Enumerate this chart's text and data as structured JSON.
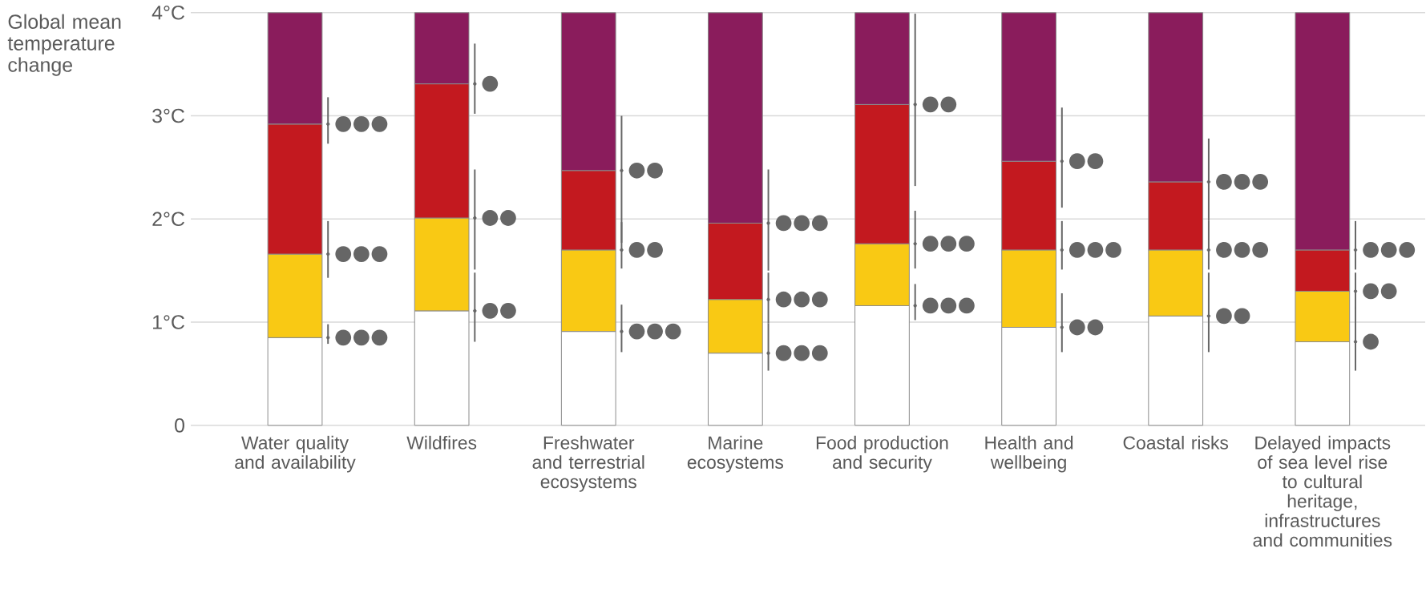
{
  "chart_data": {
    "type": "bar",
    "stacked": true,
    "ylabel": "Global mean temperature change",
    "categories": [
      "Water quality and availability",
      "Wildfires",
      "Freshwater and terrestrial ecosystems",
      "Marine ecosystems",
      "Food production and security",
      "Health and wellbeing",
      "Coastal risks",
      "Delayed impacts of sea level rise to cultural heritage, infrastructures and communities"
    ],
    "series": [
      {
        "color": "#ffffff",
        "values": [
          0.85,
          1.11,
          0.91,
          0.7,
          1.16,
          0.95,
          1.06,
          0.81
        ]
      },
      {
        "color": "#f9c914",
        "values": [
          0.81,
          0.9,
          0.79,
          0.52,
          0.6,
          0.75,
          0.64,
          0.49
        ]
      },
      {
        "color": "#c3191f",
        "values": [
          1.26,
          1.3,
          0.77,
          0.74,
          1.35,
          0.86,
          0.66,
          0.4
        ]
      },
      {
        "color": "#8a1c5c",
        "values": [
          1.08,
          0.69,
          1.53,
          2.04,
          0.89,
          1.44,
          1.64,
          2.3
        ]
      },
      {
        "type": "scatter",
        "color": "#666666",
        "values": [
          0.85,
          1.11,
          0.91,
          0.7,
          1.16,
          0.95,
          1.06,
          0.81
        ],
        "errors": [
          [
            0.79,
            0.98
          ],
          [
            0.81,
            1.48
          ],
          [
            0.71,
            1.17
          ],
          [
            0.53,
            0.99
          ],
          [
            1.02,
            1.37
          ],
          [
            0.71,
            1.28
          ],
          [
            0.71,
            1.48
          ],
          [
            0.53,
            1.15
          ]
        ],
        "value_labels": [
          "●●●",
          "●●",
          "●●●",
          "●●●",
          "●●●",
          "●●",
          "●●",
          "●"
        ]
      },
      {
        "type": "scatter",
        "color": "#666666",
        "values": [
          1.66,
          2.01,
          1.7,
          1.22,
          1.76,
          1.7,
          1.7,
          1.3
        ],
        "errors": [
          [
            1.43,
            1.98
          ],
          [
            1.51,
            2.48
          ],
          [
            1.52,
            1.97
          ],
          [
            0.99,
            1.48
          ],
          [
            1.52,
            2.08
          ],
          [
            1.51,
            1.98
          ],
          [
            1.51,
            1.98
          ],
          [
            1.13,
            1.48
          ]
        ],
        "value_labels": [
          "●●●",
          "●●",
          "●●",
          "●●●",
          "●●●",
          "●●●",
          "●●●",
          "●●"
        ]
      },
      {
        "type": "scatter",
        "color": "#666666",
        "values": [
          2.92,
          3.31,
          2.47,
          1.96,
          3.11,
          2.56,
          2.36,
          1.7
        ],
        "errors": [
          [
            2.73,
            3.18
          ],
          [
            3.02,
            3.7
          ],
          [
            1.77,
            3.0
          ],
          [
            1.5,
            2.48
          ],
          [
            2.32,
            3.99
          ],
          [
            2.11,
            3.08
          ],
          [
            1.98,
            2.78
          ],
          [
            1.51,
            1.98
          ]
        ],
        "value_labels": [
          "●●●",
          "●",
          "●●",
          "●●●",
          "●●",
          "●●",
          "●●●",
          "●●●"
        ]
      }
    ],
    "ylim": [
      0,
      4
    ],
    "yticks": [
      0,
      {
        "value": 1,
        "label": "1°C"
      },
      {
        "value": 2,
        "label": "2°C"
      },
      {
        "value": 3,
        "label": "3°C"
      },
      {
        "value": 4,
        "label": "4°C"
      }
    ],
    "grid": "y"
  }
}
